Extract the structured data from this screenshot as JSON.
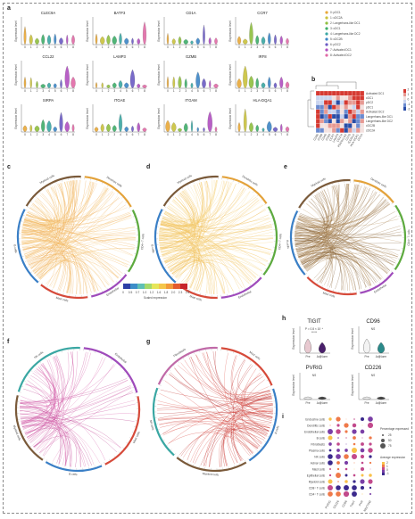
{
  "panels": {
    "a": "a",
    "b": "b",
    "c": "c",
    "d": "d",
    "e": "e",
    "f": "f",
    "g": "g",
    "h": "h",
    "i": "i"
  },
  "violin": {
    "ylabel": "Expression level",
    "genes": [
      "CLEC9A",
      "BATF3",
      "CD1A",
      "CCR7",
      "CCL22",
      "LAMP3",
      "GZMB",
      "IRF8",
      "SIRPA",
      "ITGAE",
      "ITGAM",
      "HLA-DQA1"
    ],
    "clusters": [
      "0",
      "1",
      "2",
      "3",
      "4",
      "5",
      "6",
      "7",
      "8"
    ],
    "legend": [
      "pDC1",
      "cDC2A",
      "Langerhans-like DC1",
      "cDC1",
      "Langerhans-like DC2",
      "cDC2B",
      "pDC2",
      "Activated DC1",
      "Activated DC2"
    ],
    "colors": [
      "#e8a838",
      "#c9c23d",
      "#8fbf3f",
      "#3fae6a",
      "#3aa7a3",
      "#3d86c6",
      "#6b5bc4",
      "#b14fc0",
      "#e06aa6"
    ]
  },
  "heatmap": {
    "rows": [
      "Activated DC1",
      "cDC1",
      "pDC2",
      "pDC1",
      "Activated DC2",
      "Langerhans-like DC1",
      "Langerhans-like DC2",
      "cDC2B",
      "cDC2A"
    ],
    "cols": [
      "CD86",
      "CD80",
      "CD40",
      "CD83",
      "CCR7",
      "LAMP3",
      "CD274",
      "PDCD1LG2",
      "CD70",
      "ICOSLG",
      "HLA-DQA1",
      "CD1A"
    ],
    "scale_labels": [
      "2",
      "1",
      "0",
      "-1",
      "-2"
    ]
  },
  "circos": {
    "labels": [
      "Dendritic cells",
      "CD4+ T cells",
      "Endothelial",
      "Mast cells",
      "B cells",
      "Myeloid cells",
      "NK cells",
      "Fibroblasts"
    ],
    "colorbar_title": "Scaled expression",
    "colorbar_ticks": [
      "0",
      "0.5",
      "0.7",
      "1.0",
      "1.2",
      "1.6",
      "1.8",
      "2.0",
      "2.3",
      "2.6"
    ]
  },
  "h": {
    "genes": [
      "TIGIT",
      "CD96",
      "PVRIG",
      "CD226"
    ],
    "ylabel": "Expression level",
    "groups": [
      "Pre",
      "AdjNorm"
    ],
    "stats": [
      "P = 0.8 × 10⁻⁶",
      "NS",
      "NS",
      "NS"
    ],
    "sig": [
      "*****",
      "",
      "",
      ""
    ]
  },
  "dotplot": {
    "rows": [
      "Endocrine cells",
      "Dendritic cells",
      "Endothelial cells",
      "B cells",
      "Fibroblasts",
      "Plasma cells",
      "NK cells",
      "Acinar cells",
      "Mast cells",
      "Epithelial cells",
      "Myeloid cells",
      "CD8⁺ T cells",
      "CD4⁺ T cells"
    ],
    "cols": [
      "PVRIG",
      "CD226",
      "CD96",
      "TIGIT",
      "PVR",
      "NECTIN2"
    ],
    "pct_title": "Percentage expressed",
    "pct_ticks": [
      "25",
      "50",
      "75"
    ],
    "avg_title": "Average expression",
    "avg_ticks": [
      "2",
      "1",
      "0",
      "-1"
    ]
  }
}
